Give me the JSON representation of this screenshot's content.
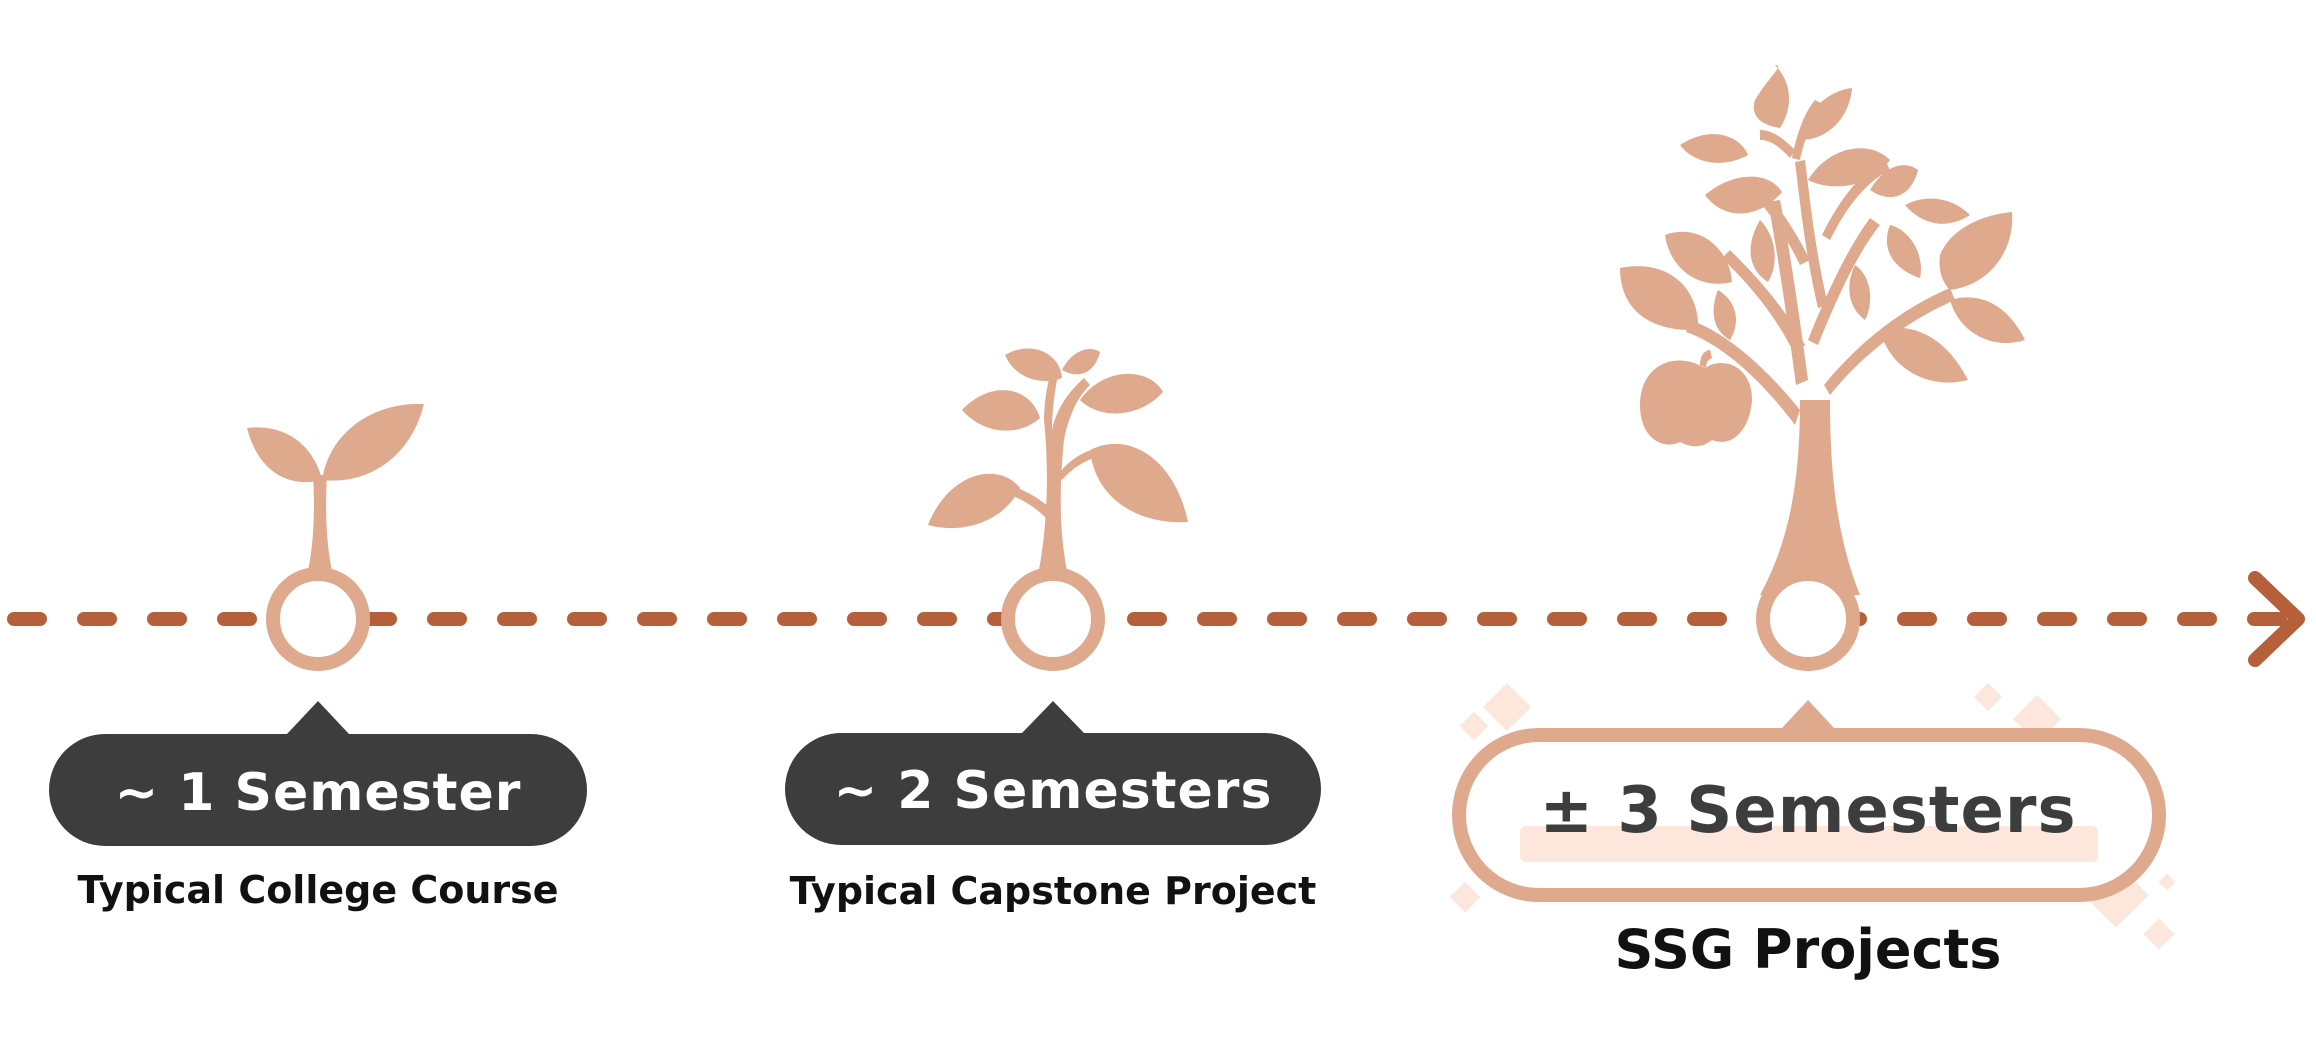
{
  "colors": {
    "plant": "#dfa98e",
    "timeline": "#b5603a",
    "dark_pill": "#3d3d3d",
    "light_accent": "#fde7dc",
    "text_dark": "#111111",
    "text_light": "#ffffff",
    "text_gray": "#3d3d3d"
  },
  "stages": [
    {
      "icon": "sprout-icon",
      "duration": "~ 1 Semester",
      "caption": "Typical College Course"
    },
    {
      "icon": "sapling-icon",
      "duration": "~ 2 Semesters",
      "caption": "Typical Capstone Project"
    },
    {
      "icon": "apple-tree-icon",
      "duration": "± 3 Semesters",
      "caption": "SSG Projects"
    }
  ],
  "timeline": {
    "icon": "arrow-right-icon"
  }
}
